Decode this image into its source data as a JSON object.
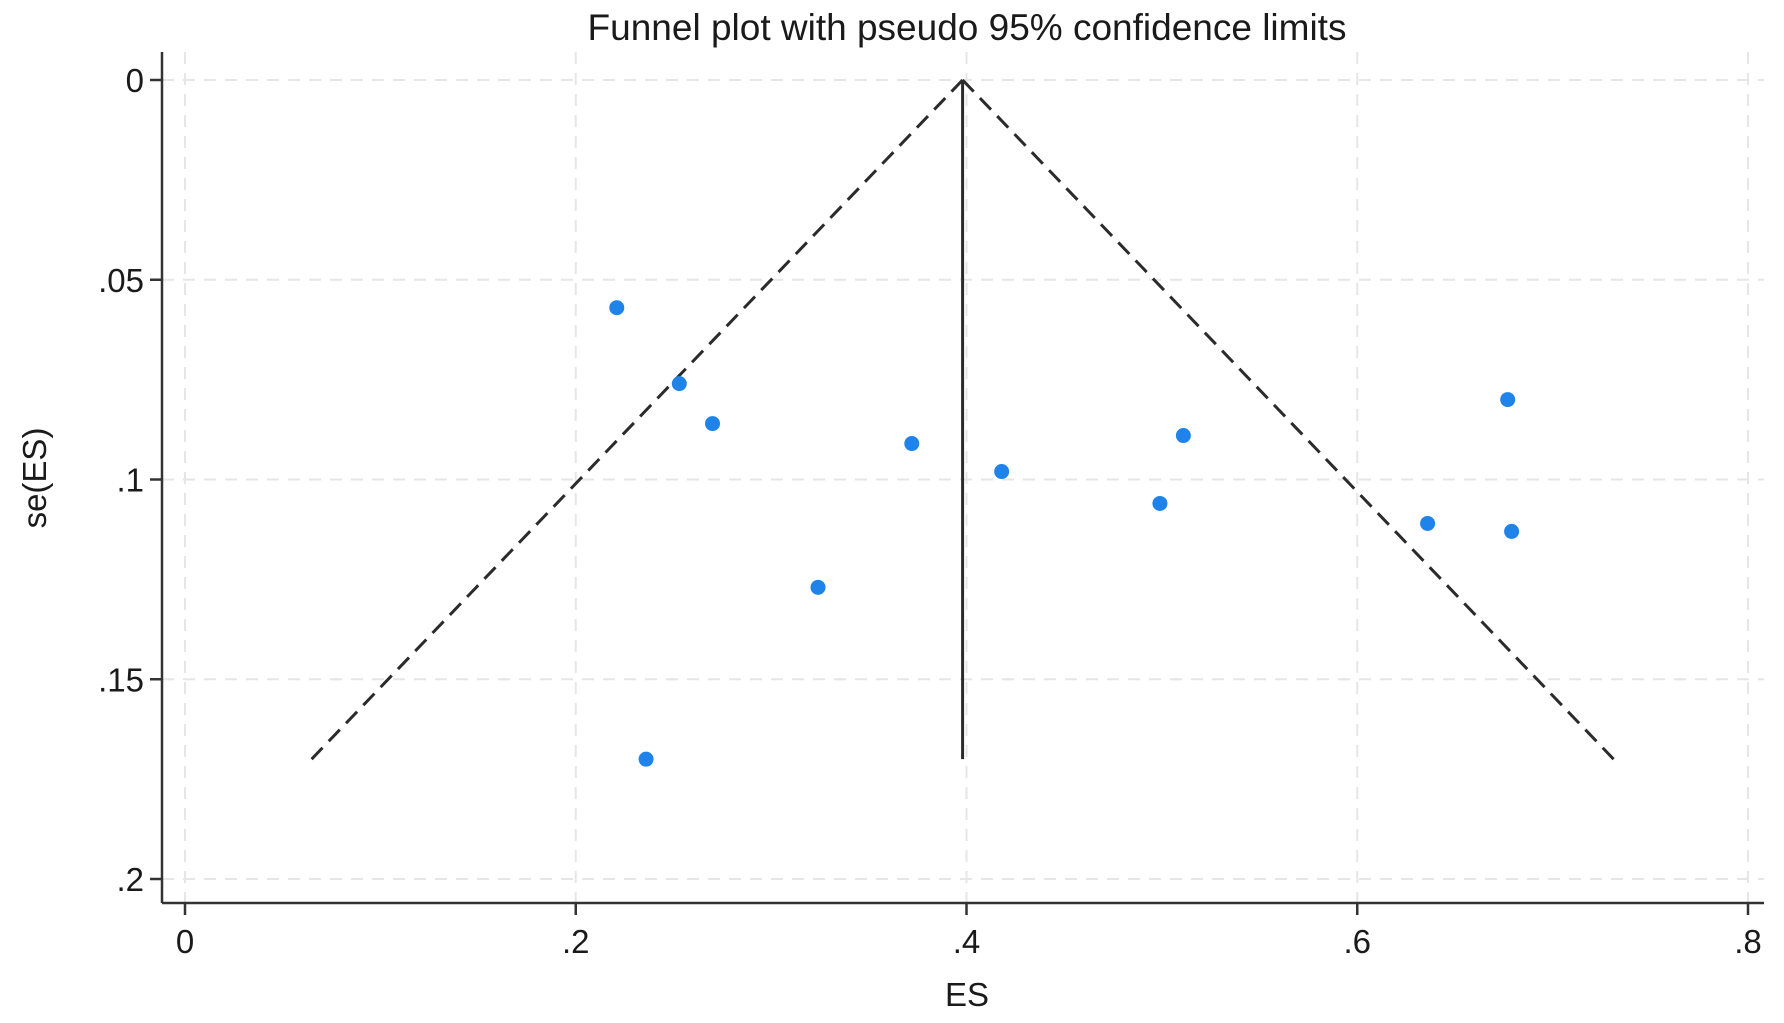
{
  "chart_data": {
    "type": "scatter",
    "title": "Funnel plot with pseudo 95% confidence limits",
    "xlabel": "ES",
    "ylabel": "se(ES)",
    "xlim": [
      0,
      0.8
    ],
    "ylim": [
      0,
      0.2
    ],
    "y_reversed": true,
    "grid": true,
    "x_ticks": [
      {
        "value": 0,
        "label": "0"
      },
      {
        "value": 0.2,
        "label": ".2"
      },
      {
        "value": 0.4,
        "label": ".4"
      },
      {
        "value": 0.6,
        "label": ".6"
      },
      {
        "value": 0.8,
        "label": ".8"
      }
    ],
    "y_ticks": [
      {
        "value": 0,
        "label": "0"
      },
      {
        "value": 0.05,
        "label": ".05"
      },
      {
        "value": 0.1,
        "label": ".1"
      },
      {
        "value": 0.15,
        "label": ".15"
      },
      {
        "value": 0.2,
        "label": ".2"
      }
    ],
    "pooled_estimate": 0.398,
    "funnel_se_max": 0.17,
    "funnel_z": 1.96,
    "points": [
      {
        "x": 0.221,
        "y": 0.057
      },
      {
        "x": 0.253,
        "y": 0.076
      },
      {
        "x": 0.27,
        "y": 0.086
      },
      {
        "x": 0.372,
        "y": 0.091
      },
      {
        "x": 0.418,
        "y": 0.098
      },
      {
        "x": 0.511,
        "y": 0.089
      },
      {
        "x": 0.499,
        "y": 0.106
      },
      {
        "x": 0.324,
        "y": 0.127
      },
      {
        "x": 0.236,
        "y": 0.17
      },
      {
        "x": 0.636,
        "y": 0.111
      },
      {
        "x": 0.677,
        "y": 0.08
      },
      {
        "x": 0.679,
        "y": 0.113
      }
    ],
    "colors": {
      "points": "#1f83ea",
      "funnel": "#2b2b2b",
      "axis": "#333333",
      "grid": "#e6e6e6"
    }
  }
}
